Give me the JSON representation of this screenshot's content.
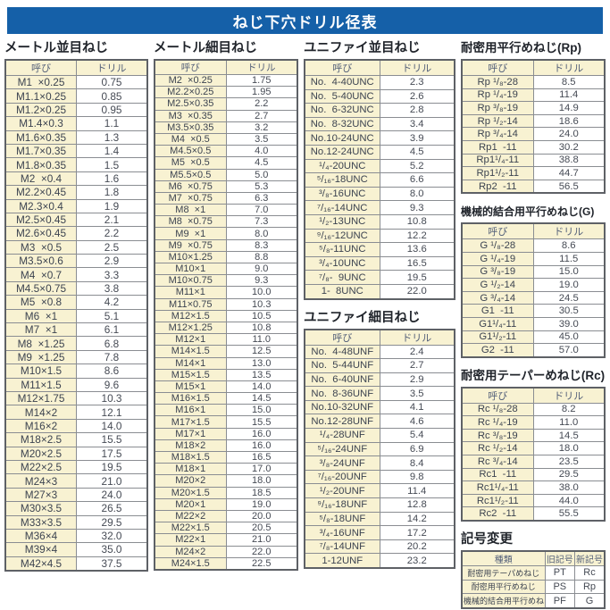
{
  "page_title": "ねじ下穴ドリル径表",
  "colors": {
    "banner_blue": "#1560a8",
    "cell_cream": "#f8f2d2",
    "border_dark": "#5e6166",
    "text_dark": "#3a4048"
  },
  "metric_coarse": {
    "title": "メートル並目ねじ",
    "headers": [
      "呼び",
      "ドリル"
    ],
    "rows": [
      [
        "M1  ×0.25",
        "0.75"
      ],
      [
        "M1.1×0.25",
        "0.85"
      ],
      [
        "M1.2×0.25",
        "0.95"
      ],
      [
        "M1.4×0.3",
        "1.1"
      ],
      [
        "M1.6×0.35",
        "1.3"
      ],
      [
        "M1.7×0.35",
        "1.4"
      ],
      [
        "M1.8×0.35",
        "1.5"
      ],
      [
        "M2  ×0.4",
        "1.6"
      ],
      [
        "M2.2×0.45",
        "1.8"
      ],
      [
        "M2.3×0.4",
        "1.9"
      ],
      [
        "M2.5×0.45",
        "2.1"
      ],
      [
        "M2.6×0.45",
        "2.2"
      ],
      [
        "M3  ×0.5",
        "2.5"
      ],
      [
        "M3.5×0.6",
        "2.9"
      ],
      [
        "M4  ×0.7",
        "3.3"
      ],
      [
        "M4.5×0.75",
        "3.8"
      ],
      [
        "M5  ×0.8",
        "4.2"
      ],
      [
        "M6  ×1",
        "5.1"
      ],
      [
        "M7  ×1",
        "6.1"
      ],
      [
        "M8  ×1.25",
        "6.8"
      ],
      [
        "M9  ×1.25",
        "7.8"
      ],
      [
        "M10×1.5",
        "8.6"
      ],
      [
        "M11×1.5",
        "9.6"
      ],
      [
        "M12×1.75",
        "10.3"
      ],
      [
        "M14×2",
        "12.1"
      ],
      [
        "M16×2",
        "14.0"
      ],
      [
        "M18×2.5",
        "15.5"
      ],
      [
        "M20×2.5",
        "17.5"
      ],
      [
        "M22×2.5",
        "19.5"
      ],
      [
        "M24×3",
        "21.0"
      ],
      [
        "M27×3",
        "24.0"
      ],
      [
        "M30×3.5",
        "26.5"
      ],
      [
        "M33×3.5",
        "29.5"
      ],
      [
        "M36×4",
        "32.0"
      ],
      [
        "M39×4",
        "35.0"
      ],
      [
        "M42×4.5",
        "37.5"
      ]
    ]
  },
  "metric_fine": {
    "title": "メートル細目ねじ",
    "headers": [
      "呼び",
      "ドリル"
    ],
    "rows": [
      [
        "M2  ×0.25",
        "1.75"
      ],
      [
        "M2.2×0.25",
        "1.95"
      ],
      [
        "M2.5×0.35",
        "2.2"
      ],
      [
        "M3  ×0.35",
        "2.7"
      ],
      [
        "M3.5×0.35",
        "3.2"
      ],
      [
        "M4  ×0.5",
        "3.5"
      ],
      [
        "M4.5×0.5",
        "4.0"
      ],
      [
        "M5  ×0.5",
        "4.5"
      ],
      [
        "M5.5×0.5",
        "5.0"
      ],
      [
        "M6  ×0.75",
        "5.3"
      ],
      [
        "M7  ×0.75",
        "6.3"
      ],
      [
        "M8  ×1",
        "7.0"
      ],
      [
        "M8  ×0.75",
        "7.3"
      ],
      [
        "M9  ×1",
        "8.0"
      ],
      [
        "M9  ×0.75",
        "8.3"
      ],
      [
        "M10×1.25",
        "8.8"
      ],
      [
        "M10×1",
        "9.0"
      ],
      [
        "M10×0.75",
        "9.3"
      ],
      [
        "M11×1",
        "10.0"
      ],
      [
        "M11×0.75",
        "10.3"
      ],
      [
        "M12×1.5",
        "10.5"
      ],
      [
        "M12×1.25",
        "10.8"
      ],
      [
        "M12×1",
        "11.0"
      ],
      [
        "M14×1.5",
        "12.5"
      ],
      [
        "M14×1",
        "13.0"
      ],
      [
        "M15×1.5",
        "13.5"
      ],
      [
        "M15×1",
        "14.0"
      ],
      [
        "M16×1.5",
        "14.5"
      ],
      [
        "M16×1",
        "15.0"
      ],
      [
        "M17×1.5",
        "15.5"
      ],
      [
        "M17×1",
        "16.0"
      ],
      [
        "M18×2",
        "16.0"
      ],
      [
        "M18×1.5",
        "16.5"
      ],
      [
        "M18×1",
        "17.0"
      ],
      [
        "M20×2",
        "18.0"
      ],
      [
        "M20×1.5",
        "18.5"
      ],
      [
        "M20×1",
        "19.0"
      ],
      [
        "M22×2",
        "20.0"
      ],
      [
        "M22×1.5",
        "20.5"
      ],
      [
        "M22×1",
        "21.0"
      ],
      [
        "M24×2",
        "22.0"
      ],
      [
        "M24×1.5",
        "22.5"
      ]
    ]
  },
  "unified_coarse": {
    "title": "ユニファイ並目ねじ",
    "headers": [
      "呼び",
      "ドリル"
    ],
    "rows": [
      [
        "No.  4-40UNC",
        "2.3"
      ],
      [
        "No.  5-40UNC",
        "2.6"
      ],
      [
        "No.  6-32UNC",
        "2.8"
      ],
      [
        "No.  8-32UNC",
        "3.4"
      ],
      [
        "No.10-24UNC",
        "3.9"
      ],
      [
        "No.12-24UNC",
        "4.5"
      ],
      [
        "¹/₄-20UNC",
        "5.2"
      ],
      [
        "⁵/₁₆-18UNC",
        "6.6"
      ],
      [
        "³/₈-16UNC",
        "8.0"
      ],
      [
        "⁷/₁₆-14UNC",
        "9.3"
      ],
      [
        "¹/₂-13UNC",
        "10.8"
      ],
      [
        "⁹/₁₆-12UNC",
        "12.2"
      ],
      [
        "⁵/₈-11UNC",
        "13.6"
      ],
      [
        "³/₄-10UNC",
        "16.5"
      ],
      [
        "⁷/₈-  9UNC",
        "19.5"
      ],
      [
        "1-  8UNC",
        "22.0"
      ]
    ]
  },
  "unified_fine": {
    "title": "ユニファイ細目ねじ",
    "headers": [
      "呼び",
      "ドリル"
    ],
    "rows": [
      [
        "No.  4-48UNF",
        "2.4"
      ],
      [
        "No.  5-44UNF",
        "2.7"
      ],
      [
        "No.  6-40UNF",
        "2.9"
      ],
      [
        "No.  8-36UNF",
        "3.5"
      ],
      [
        "No.10-32UNF",
        "4.1"
      ],
      [
        "No.12-28UNF",
        "4.6"
      ],
      [
        "¹/₄-28UNF",
        "5.4"
      ],
      [
        "⁵/₁₆-24UNF",
        "6.9"
      ],
      [
        "³/₈-24UNF",
        "8.4"
      ],
      [
        "⁷/₁₆-20UNF",
        "9.8"
      ],
      [
        "¹/₂-20UNF",
        "11.4"
      ],
      [
        "⁹/₁₆-18UNF",
        "12.8"
      ],
      [
        "⁵/₈-18UNF",
        "14.2"
      ],
      [
        "³/₄-16UNF",
        "17.2"
      ],
      [
        "⁷/₈-14UNF",
        "20.2"
      ],
      [
        "1-12UNF",
        "23.2"
      ]
    ]
  },
  "rp": {
    "title": "耐密用平行めねじ(Rp)",
    "headers": [
      "呼び",
      "ドリル"
    ],
    "rows": [
      [
        "Rp ¹/₈-28",
        "8.5"
      ],
      [
        "Rp ¹/₄-19",
        "11.4"
      ],
      [
        "Rp ³/₈-19",
        "14.9"
      ],
      [
        "Rp ¹/₂-14",
        "18.6"
      ],
      [
        "Rp ³/₄-14",
        "24.0"
      ],
      [
        "Rp1  -11",
        "30.2"
      ],
      [
        "Rp1¹/₄-11",
        "38.8"
      ],
      [
        "Rp1¹/₂-11",
        "44.7"
      ],
      [
        "Rp2  -11",
        "56.5"
      ]
    ]
  },
  "g": {
    "title": "機械的結合用平行めねじ(G)",
    "headers": [
      "呼び",
      "ドリル"
    ],
    "rows": [
      [
        "G ¹/₈-28",
        "8.6"
      ],
      [
        "G ¹/₄-19",
        "11.5"
      ],
      [
        "G ³/₈-19",
        "15.0"
      ],
      [
        "G ¹/₂-14",
        "19.0"
      ],
      [
        "G ³/₄-14",
        "24.5"
      ],
      [
        "G1  -11",
        "30.5"
      ],
      [
        "G1¹/₄-11",
        "39.0"
      ],
      [
        "G1¹/₂-11",
        "45.0"
      ],
      [
        "G2  -11",
        "57.0"
      ]
    ]
  },
  "rc": {
    "title": "耐密用テーパーめねじ(Rc)",
    "headers": [
      "呼び",
      "ドリル"
    ],
    "rows": [
      [
        "Rc ¹/₈-28",
        "8.2"
      ],
      [
        "Rc ¹/₄-19",
        "11.0"
      ],
      [
        "Rc ³/₈-19",
        "14.5"
      ],
      [
        "Rc ¹/₂-14",
        "18.0"
      ],
      [
        "Rc ³/₄-14",
        "23.5"
      ],
      [
        "Rc1  -11",
        "29.5"
      ],
      [
        "Rc1¹/₄-11",
        "38.0"
      ],
      [
        "Rc1¹/₂-11",
        "44.0"
      ],
      [
        "Rc2  -11",
        "55.5"
      ]
    ]
  },
  "symbol_change": {
    "title": "記号変更",
    "headers": [
      "種類",
      "旧記号",
      "新記号"
    ],
    "rows": [
      [
        "耐密用テーパめねじ",
        "PT",
        "Rc"
      ],
      [
        "耐密用平行めねじ",
        "PS",
        "Rp"
      ],
      [
        "機械的結合用平行めねじ",
        "PF",
        "G"
      ]
    ]
  }
}
